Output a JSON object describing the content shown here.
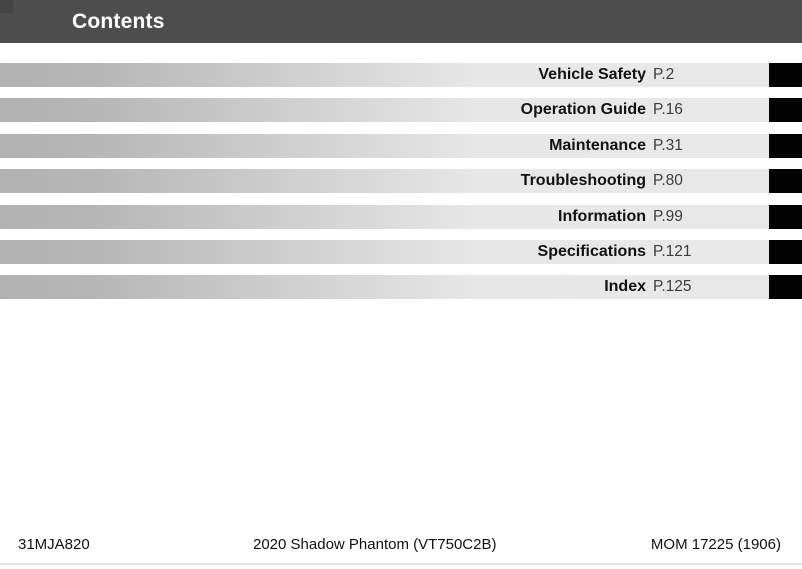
{
  "header": {
    "title": "Contents"
  },
  "toc": {
    "items": [
      {
        "label": "Vehicle Safety",
        "page": "P.2"
      },
      {
        "label": "Operation Guide",
        "page": "P.16"
      },
      {
        "label": "Maintenance",
        "page": "P.31"
      },
      {
        "label": "Troubleshooting",
        "page": "P.80"
      },
      {
        "label": "Information",
        "page": "P.99"
      },
      {
        "label": "Specifications",
        "page": "P.121"
      },
      {
        "label": "Index",
        "page": "P.125"
      }
    ]
  },
  "footer": {
    "left": "31MJA820",
    "center": "2020 Shadow Phantom (VT750C2B)",
    "right": "MOM 17225 (1906)"
  },
  "colors": {
    "header_bg": "#4d4d4d",
    "bar_gradient_start": "#b1b1b1",
    "bar_gradient_end": "#e8e8e8",
    "section_tab": "#030303",
    "bottom_rule": "#e3e3e3",
    "title_text": "#ffffff",
    "label_text": "#121212",
    "page_text": "#3d3d3d"
  }
}
